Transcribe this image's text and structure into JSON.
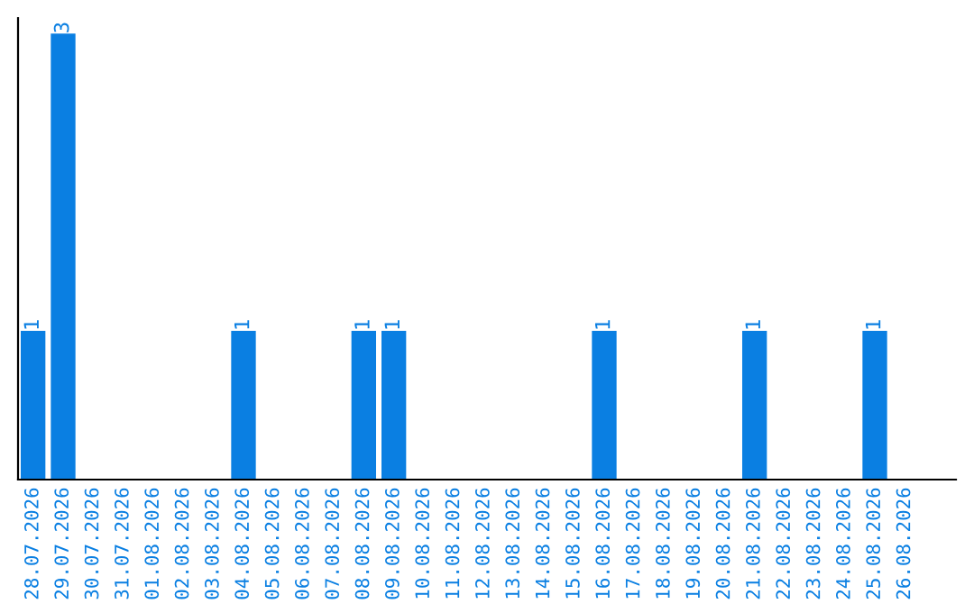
{
  "chart_data": {
    "type": "bar",
    "categories": [
      "28.07.2026",
      "29.07.2026",
      "30.07.2026",
      "31.07.2026",
      "01.08.2026",
      "02.08.2026",
      "03.08.2026",
      "04.08.2026",
      "05.08.2026",
      "06.08.2026",
      "07.08.2026",
      "08.08.2026",
      "09.08.2026",
      "10.08.2026",
      "11.08.2026",
      "12.08.2026",
      "13.08.2026",
      "14.08.2026",
      "15.08.2026",
      "16.08.2026",
      "17.08.2026",
      "18.08.2026",
      "19.08.2026",
      "20.08.2026",
      "21.08.2026",
      "22.08.2026",
      "23.08.2026",
      "24.08.2026",
      "25.08.2026",
      "26.08.2026"
    ],
    "values": [
      1,
      3,
      0,
      0,
      0,
      0,
      0,
      1,
      0,
      0,
      0,
      1,
      1,
      0,
      0,
      0,
      0,
      0,
      0,
      1,
      0,
      0,
      0,
      0,
      1,
      0,
      0,
      0,
      1,
      0
    ],
    "value_labels": [
      "1",
      "3",
      null,
      null,
      null,
      null,
      null,
      "1",
      null,
      null,
      null,
      "1",
      "1",
      null,
      null,
      null,
      null,
      null,
      null,
      "1",
      null,
      null,
      null,
      null,
      "1",
      null,
      null,
      null,
      "1",
      null
    ],
    "color": "#0a7fe2",
    "grid": false,
    "legend": false
  }
}
